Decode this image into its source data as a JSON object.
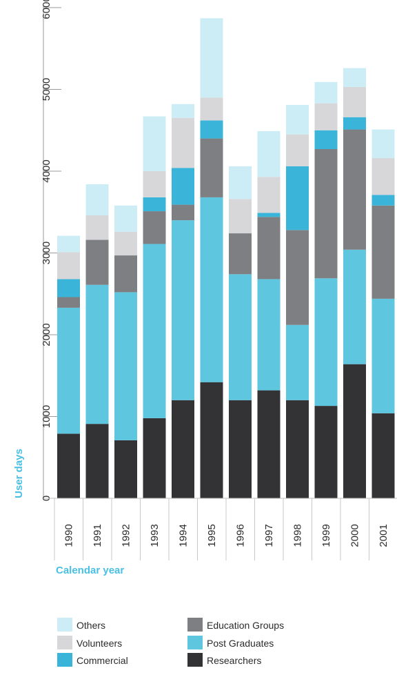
{
  "chart_data": {
    "type": "bar",
    "stacked": true,
    "orientation": "vertical",
    "xlabel": "Calendar year",
    "ylabel": "User days",
    "ylim": [
      0,
      6000
    ],
    "y_ticks": [
      "0",
      "1000",
      "2000",
      "3000",
      "4000",
      "5000",
      "6000"
    ],
    "categories": [
      "1990",
      "1991",
      "1992",
      "1993",
      "1994",
      "1995",
      "1996",
      "1997",
      "1998",
      "1999",
      "2000",
      "2001"
    ],
    "series": [
      {
        "name": "Researchers",
        "color": "#333335",
        "values": [
          790,
          910,
          710,
          980,
          1200,
          1420,
          1200,
          1320,
          1200,
          1130,
          1640,
          1040
        ]
      },
      {
        "name": "Post Graduates",
        "color": "#5fc6e0",
        "values": [
          1540,
          1700,
          1810,
          2130,
          2200,
          2260,
          1540,
          1360,
          920,
          1560,
          1400,
          1400
        ]
      },
      {
        "name": "Education Groups",
        "color": "#7d7f83",
        "values": [
          130,
          550,
          450,
          400,
          190,
          720,
          500,
          760,
          1160,
          1580,
          1470,
          1140
        ]
      },
      {
        "name": "Commercial",
        "color": "#3ab4d8",
        "values": [
          220,
          0,
          0,
          170,
          450,
          220,
          0,
          50,
          780,
          230,
          150,
          130
        ]
      },
      {
        "name": "Volunteers",
        "color": "#d7d7da",
        "values": [
          330,
          300,
          290,
          320,
          610,
          280,
          420,
          440,
          390,
          330,
          370,
          450
        ]
      },
      {
        "name": "Others",
        "color": "#cdedf6",
        "values": [
          200,
          380,
          320,
          670,
          170,
          970,
          400,
          560,
          360,
          260,
          230,
          350
        ]
      }
    ],
    "legend": {
      "placement": "bottom",
      "order": [
        "Others",
        "Volunteers",
        "Commercial",
        "Education Groups",
        "Post Graduates",
        "Researchers"
      ]
    },
    "grid": false
  }
}
